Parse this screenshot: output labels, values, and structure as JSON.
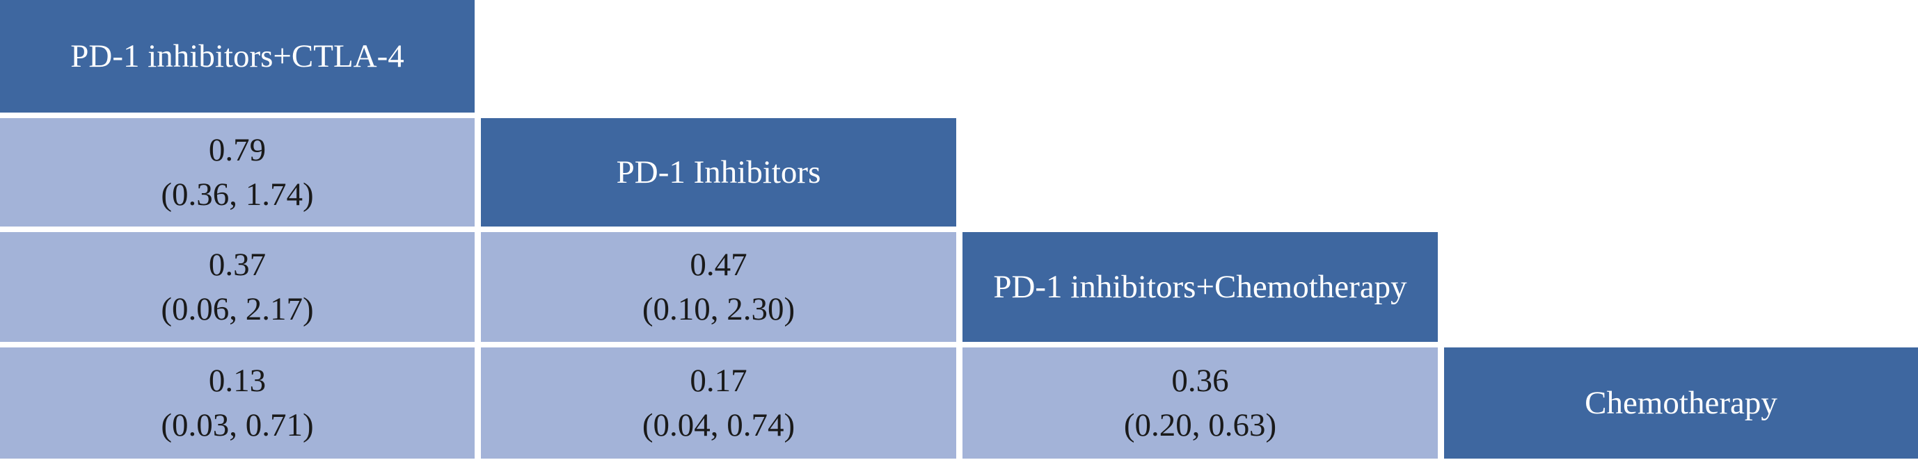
{
  "treatments": [
    "PD-1 inhibitors+CTLA-4",
    "PD-1 Inhibitors",
    "PD-1 inhibitors+Chemotherapy",
    "Chemotherapy"
  ],
  "comparisons": {
    "r2c1": {
      "estimate": "0.79",
      "ci": "(0.36, 1.74)"
    },
    "r3c1": {
      "estimate": "0.37",
      "ci": "(0.06, 2.17)"
    },
    "r3c2": {
      "estimate": "0.47",
      "ci": "(0.10, 2.30)"
    },
    "r4c1": {
      "estimate": "0.13",
      "ci": "(0.03, 0.71)"
    },
    "r4c2": {
      "estimate": "0.17",
      "ci": "(0.04, 0.74)"
    },
    "r4c3": {
      "estimate": "0.36",
      "ci": "(0.20, 0.63)"
    }
  },
  "colors": {
    "treatment_fill": "#3e67a0",
    "comparison_fill": "#a3b3d8",
    "treatment_text": "#ffffff",
    "comparison_text": "#1a1a1a"
  }
}
